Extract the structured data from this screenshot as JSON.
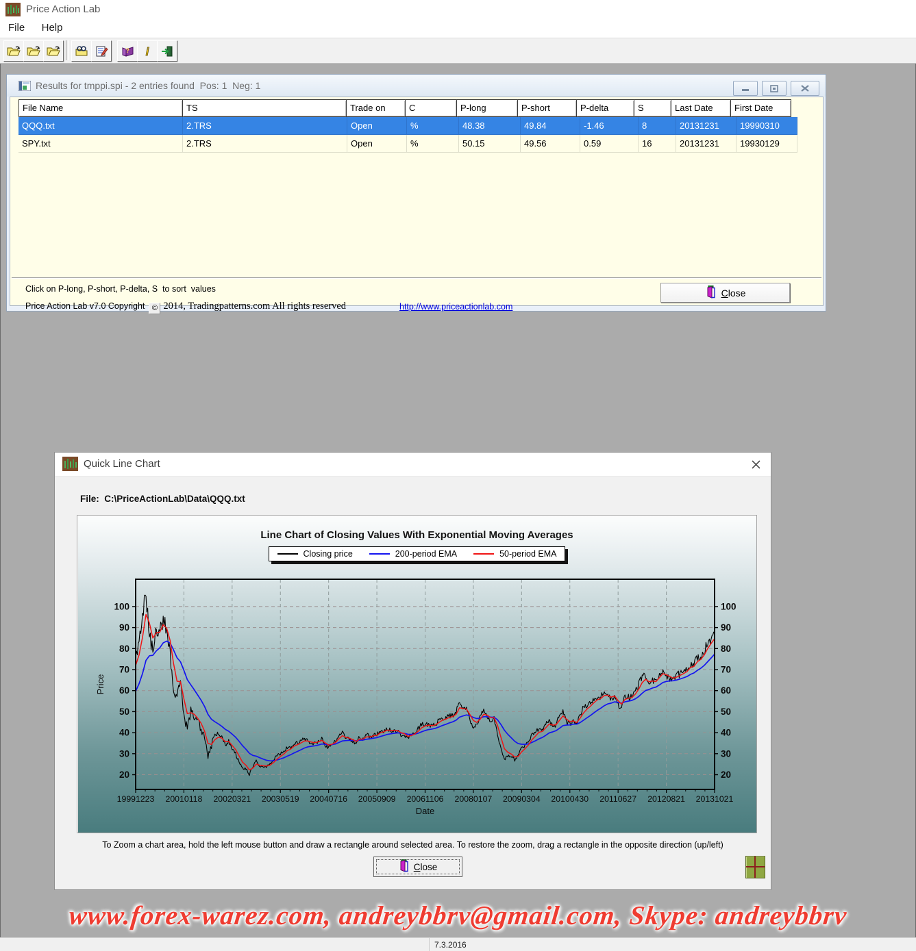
{
  "app": {
    "title": "Price Action Lab",
    "menu": [
      "File",
      "Help"
    ],
    "toolbar_icons": [
      "open-file-icon",
      "open-file-icon",
      "open-file-icon",
      "scan-folder-icon",
      "edit-report-icon",
      "help-book-icon",
      "info-icon",
      "exit-icon"
    ]
  },
  "results_window": {
    "title": "Results for tmppi.spi - 2 entries found  Pos: 1  Neg: 1",
    "columns": [
      "File Name",
      "TS",
      "Trade on",
      "C",
      "P-long",
      "P-short",
      "P-delta",
      "S",
      "Last Date",
      "First Date"
    ],
    "rows": [
      [
        "QQQ.txt",
        "2.TRS",
        "Open",
        "%",
        "48.38",
        "49.84",
        "-1.46",
        "8",
        "20131231",
        "19990310"
      ],
      [
        "SPY.txt",
        "2.TRS",
        "Open",
        "%",
        "50.15",
        "49.56",
        "0.59",
        "16",
        "20131231",
        "19930129"
      ]
    ],
    "selected_row": 0,
    "sort_hint": "Click on P-long, P-short, P-delta, S  to sort  values",
    "copyright_prefix": "Price Action Lab v7.0 Copyright",
    "copyright_symbol": "©",
    "copyright_suffix": "2014, Tradingpatterns.com All rights reserved",
    "link": "http://www.priceactionlab.com",
    "close_label": "Close"
  },
  "chart_window": {
    "title": "Quick Line Chart",
    "file_label": "File:  C:\\PriceActionLab\\Data\\QQQ.txt",
    "instruction": "To Zoom a chart area, hold the left mouse button and draw a rectangle around selected area. To restore the zoom, drag a rectangle in the opposite direction (up/left)",
    "close_label": "Close"
  },
  "chart_data": {
    "type": "line",
    "title": "Line Chart of Closing Values With Exponential Moving Averages",
    "xlabel": "Date",
    "ylabel": "Price",
    "ylim": [
      13,
      113
    ],
    "yticks": [
      20,
      30,
      40,
      50,
      60,
      70,
      80,
      90,
      100
    ],
    "xticklabels": [
      "19991223",
      "20010118",
      "20020321",
      "20030519",
      "20040716",
      "20050909",
      "20061106",
      "20080107",
      "20090304",
      "20100430",
      "20110627",
      "20120821",
      "20131021"
    ],
    "grid": "dashed",
    "legend_position": "top-center",
    "legend": [
      {
        "label": "Closing price",
        "color": "#000000"
      },
      {
        "label": "200-period EMA",
        "color": "#1414f0"
      },
      {
        "label": "50-period EMA",
        "color": "#f01414"
      }
    ],
    "series": [
      {
        "name": "Closing price",
        "color": "#000000",
        "frequency": "monthly",
        "values": [
          74,
          82,
          94,
          107,
          88,
          78,
          90,
          88,
          95,
          88,
          78,
          62,
          56,
          64,
          48,
          42,
          50,
          48,
          45,
          42,
          37,
          29,
          34,
          39,
          39,
          37,
          34,
          36,
          32,
          30,
          26,
          23,
          23,
          20,
          24,
          27,
          24,
          24,
          24,
          25,
          27,
          29,
          30,
          31,
          33,
          33,
          35,
          35,
          36,
          37,
          36,
          35,
          35,
          36,
          37,
          34,
          33,
          35,
          36,
          39,
          40,
          37,
          37,
          36,
          35,
          38,
          37,
          39,
          38,
          39,
          39,
          41,
          41,
          42,
          41,
          41,
          41,
          39,
          39,
          37,
          39,
          40,
          42,
          44,
          44,
          44,
          43,
          44,
          46,
          47,
          47,
          48,
          48,
          50,
          55,
          51,
          51,
          46,
          43,
          44,
          48,
          51,
          48,
          46,
          47,
          40,
          32,
          27,
          29,
          29,
          27,
          29,
          33,
          34,
          36,
          39,
          40,
          42,
          41,
          44,
          46,
          43,
          44,
          48,
          50,
          45,
          44,
          46,
          44,
          49,
          52,
          53,
          54,
          56,
          57,
          57,
          59,
          58,
          56,
          58,
          53,
          52,
          58,
          57,
          57,
          60,
          63,
          67,
          67,
          63,
          65,
          64,
          68,
          70,
          67,
          66,
          65,
          67,
          68,
          69,
          70,
          73,
          72,
          76,
          76,
          79,
          83,
          85,
          87
        ]
      },
      {
        "name": "200-period EMA",
        "color": "#1414f0",
        "derived": "ema",
        "period": 200,
        "seed": 57
      },
      {
        "name": "50-period EMA",
        "color": "#f01414",
        "derived": "ema",
        "period": 50,
        "seed": 70
      }
    ]
  },
  "watermark": "www.forex-warez.com, andreybbrv@gmail.com, Skype: andreybbrv",
  "status": {
    "date": "7.3.2016"
  }
}
